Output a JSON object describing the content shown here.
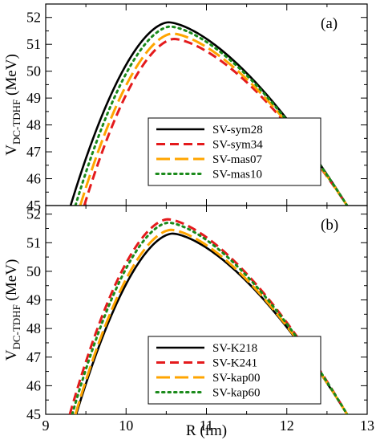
{
  "chart_data": [
    {
      "type": "line",
      "panel_label": "(a)",
      "xlabel": "",
      "ylabel": "V",
      "ylabel_sub": "DC-TDHF",
      "ylabel_unit": " (MeV)",
      "xlim": [
        9,
        13
      ],
      "ylim": [
        45,
        52.5
      ],
      "xticks": [
        9,
        10,
        11,
        12,
        13
      ],
      "yticks": [
        45,
        46,
        47,
        48,
        49,
        50,
        51,
        52
      ],
      "show_xtick_labels": false,
      "legend_position": "center",
      "series": [
        {
          "name": "SV-sym28",
          "color": "#000000",
          "style": "solid",
          "peak_x": 10.53,
          "peak_y": 51.82,
          "x_at_45": 9.31
        },
        {
          "name": "SV-sym34",
          "color": "#e41a1c",
          "style": "dashed",
          "peak_x": 10.6,
          "peak_y": 51.2,
          "x_at_45": 9.48
        },
        {
          "name": "SV-mas07",
          "color": "#ffa500",
          "style": "longdash",
          "peak_x": 10.58,
          "peak_y": 51.4,
          "x_at_45": 9.43
        },
        {
          "name": "SV-mas10",
          "color": "#1a8a1a",
          "style": "dotted",
          "peak_x": 10.55,
          "peak_y": 51.66,
          "x_at_45": 9.37
        }
      ]
    },
    {
      "type": "line",
      "panel_label": "(b)",
      "xlabel": "R (fm)",
      "ylabel": "V",
      "ylabel_sub": "DC-TDHF",
      "ylabel_unit": " (MeV)",
      "xlim": [
        9,
        13
      ],
      "ylim": [
        45,
        52.3
      ],
      "xticks": [
        9,
        10,
        11,
        12,
        13
      ],
      "yticks": [
        45,
        46,
        47,
        48,
        49,
        50,
        51,
        52
      ],
      "show_xtick_labels": true,
      "legend_position": "bottom-right",
      "series": [
        {
          "name": "SV-K218",
          "color": "#000000",
          "style": "solid",
          "peak_x": 10.58,
          "peak_y": 51.32,
          "x_at_45": 9.38
        },
        {
          "name": "SV-K241",
          "color": "#e41a1c",
          "style": "dashed",
          "peak_x": 10.52,
          "peak_y": 51.82,
          "x_at_45": 9.3
        },
        {
          "name": "SV-kap00",
          "color": "#ffa500",
          "style": "longdash",
          "peak_x": 10.56,
          "peak_y": 51.45,
          "x_at_45": 9.37
        },
        {
          "name": "SV-kap60",
          "color": "#1a8a1a",
          "style": "dotted",
          "peak_x": 10.53,
          "peak_y": 51.7,
          "x_at_45": 9.33
        }
      ]
    }
  ],
  "shared_tail": {
    "x": 12.75,
    "y": 45.0
  }
}
